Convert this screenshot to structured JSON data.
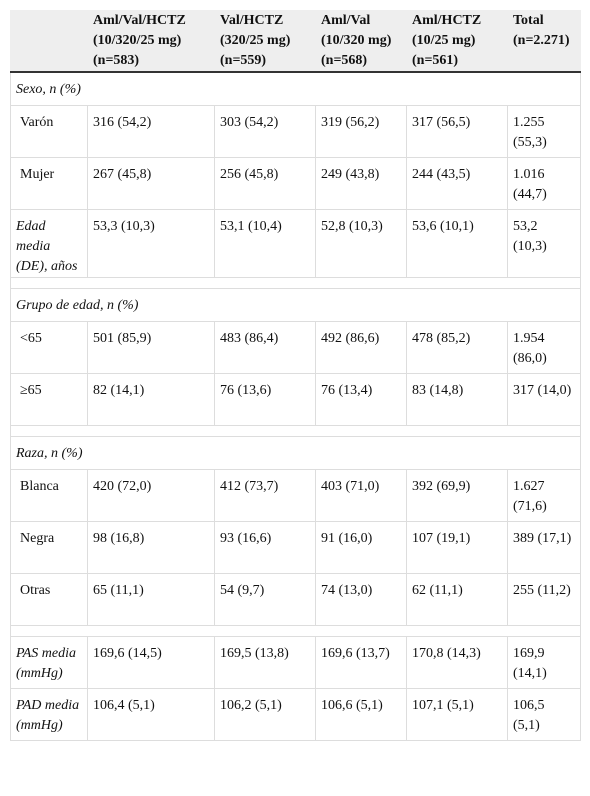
{
  "table": {
    "header": [
      "Aml/Val/HCTZ\n(10/320/25 mg)\n(n=583)",
      "Val/HCTZ\n(320/25 mg)\n(n=559)",
      "Aml/Val\n(10/320 mg)\n(n=568)",
      "Aml/HCTZ\n(10/25 mg)\n(n=561)",
      "Total\n(n=2.271)"
    ],
    "blocks": [
      [
        {
          "title": "Sexo, n (%)",
          "rows": [
            [
              "Varón",
              "316 (54,2)",
              "303 (54,2)",
              "319 (56,2)",
              "317 (56,5)",
              "1.255 (55,3)"
            ],
            [
              "Mujer",
              "267 (45,8)",
              "256 (45,8)",
              "249 (43,8)",
              "244 (43,5)",
              "1.016 (44,7)"
            ]
          ]
        },
        [
          "Edad media (DE), años",
          "53,3 (10,3)",
          "53,1 (10,4)",
          "52,8 (10,3)",
          "53,6 (10,1)",
          "53,2 (10,3)"
        ]
      ],
      [
        {
          "title": "Grupo de edad, n (%)",
          "rows": [
            [
              "<65",
              "501 (85,9)",
              "483 (86,4)",
              "492 (86,6)",
              "478 (85,2)",
              "1.954 (86,0)"
            ],
            [
              "≥65",
              "82 (14,1)",
              "76 (13,6)",
              "76 (13,4)",
              "83 (14,8)",
              "317 (14,0)"
            ]
          ]
        }
      ],
      [
        {
          "title": "Raza, n (%)",
          "rows": [
            [
              "Blanca",
              "420 (72,0)",
              "412 (73,7)",
              "403 (71,0)",
              "392 (69,9)",
              "1.627 (71,6)"
            ],
            [
              "Negra",
              "98 (16,8)",
              "93 (16,6)",
              "91 (16,0)",
              "107 (19,1)",
              "389 (17,1)"
            ],
            [
              "Otras",
              "65 (11,1)",
              "54 (9,7)",
              "74 (13,0)",
              "62 (11,1)",
              "255 (11,2)"
            ]
          ]
        }
      ],
      [
        [
          "PAS media (mmHg)",
          "169,6 (14,5)",
          "169,5 (13,8)",
          "169,6 (13,7)",
          "170,8 (14,3)",
          "169,9 (14,1)"
        ],
        [
          "PAD media (mmHg)",
          "106,4 (5,1)",
          "106,2 (5,1)",
          "106,6 (5,1)",
          "107,1 (5,1)",
          "106,5 (5,1)"
        ]
      ]
    ]
  }
}
